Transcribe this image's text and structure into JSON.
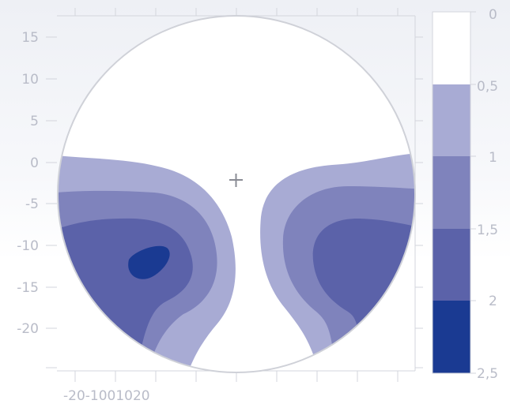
{
  "chart_data": {
    "type": "heatmap",
    "title": "",
    "xlabel": "",
    "ylabel": "",
    "xlim": [
      -25,
      30
    ],
    "ylim": [
      -25,
      18
    ],
    "x_tick_label_text": "-20-1001020",
    "y_ticks": [
      "15",
      "10",
      "5",
      "0",
      "-5",
      "-10",
      "-15",
      "-20"
    ],
    "colorbar": {
      "ticks": [
        "0",
        "0,5",
        "1",
        "1,5",
        "2",
        "2,5"
      ],
      "levels": [
        {
          "range": [
            0,
            0.5
          ],
          "color": "#ffffff"
        },
        {
          "range": [
            0.5,
            1
          ],
          "color": "#a8abd4"
        },
        {
          "range": [
            1,
            1.5
          ],
          "color": "#7f83bc"
        },
        {
          "range": [
            1.5,
            2
          ],
          "color": "#5b62a9"
        },
        {
          "range": [
            2,
            2.5
          ],
          "color": "#1a3a92"
        }
      ]
    },
    "center_marker": "plus"
  }
}
